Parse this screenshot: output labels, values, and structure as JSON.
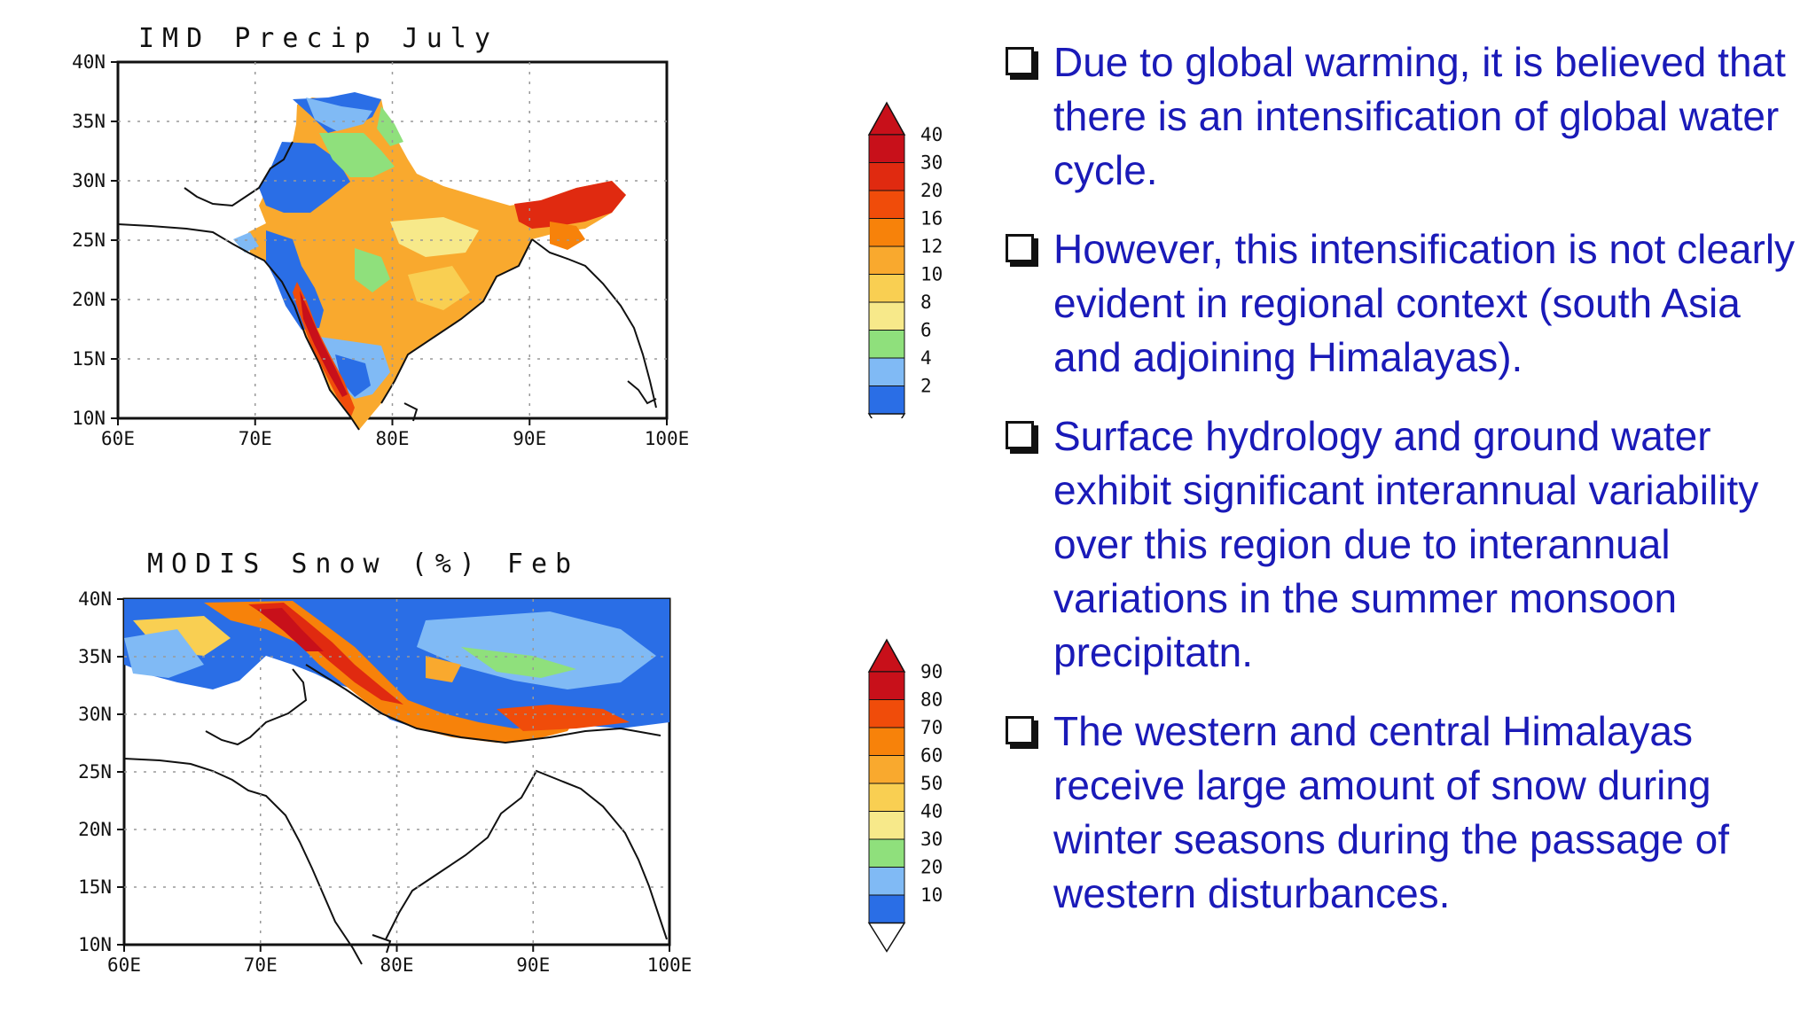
{
  "precip_map": {
    "title": "IMD Precip July",
    "lat_ticks": [
      "40N",
      "35N",
      "30N",
      "25N",
      "20N",
      "15N",
      "10N"
    ],
    "lon_ticks": [
      "60E",
      "70E",
      "80E",
      "90E",
      "100E"
    ],
    "colorbar": {
      "labels": [
        "40",
        "30",
        "20",
        "16",
        "12",
        "10",
        "8",
        "6",
        "4",
        "2"
      ],
      "colors": [
        "#c8101a",
        "#e02a10",
        "#f04c0a",
        "#f7820a",
        "#f9a92e",
        "#f9cf52",
        "#f7e98a",
        "#8fe07c",
        "#80baf5",
        "#2a6ee6"
      ]
    }
  },
  "snow_map": {
    "title": "MODIS Snow (%) Feb",
    "lat_ticks": [
      "40N",
      "35N",
      "30N",
      "25N",
      "20N",
      "15N",
      "10N"
    ],
    "lon_ticks": [
      "60E",
      "70E",
      "80E",
      "90E",
      "100E"
    ],
    "colorbar": {
      "labels": [
        "90",
        "80",
        "70",
        "60",
        "50",
        "40",
        "30",
        "20",
        "10"
      ],
      "colors": [
        "#c8101a",
        "#f04c0a",
        "#f7820a",
        "#f9a92e",
        "#f9cf52",
        "#f7e98a",
        "#8fe07c",
        "#80baf5",
        "#2a6ee6"
      ]
    }
  },
  "bullets": [
    "Due to global warming, it is believed that there is an intensification of global water cycle.",
    "However, this intensification is not clearly evident in regional context (south Asia and adjoining Himalayas).",
    "Surface hydrology and ground water exhibit significant interannual variability over this region due to interannual variations in the summer monsoon precipitatn.",
    "The western and central Himalayas receive large amount of snow during winter seasons during the passage of western disturbances."
  ],
  "text_color": "#1a1ab8"
}
